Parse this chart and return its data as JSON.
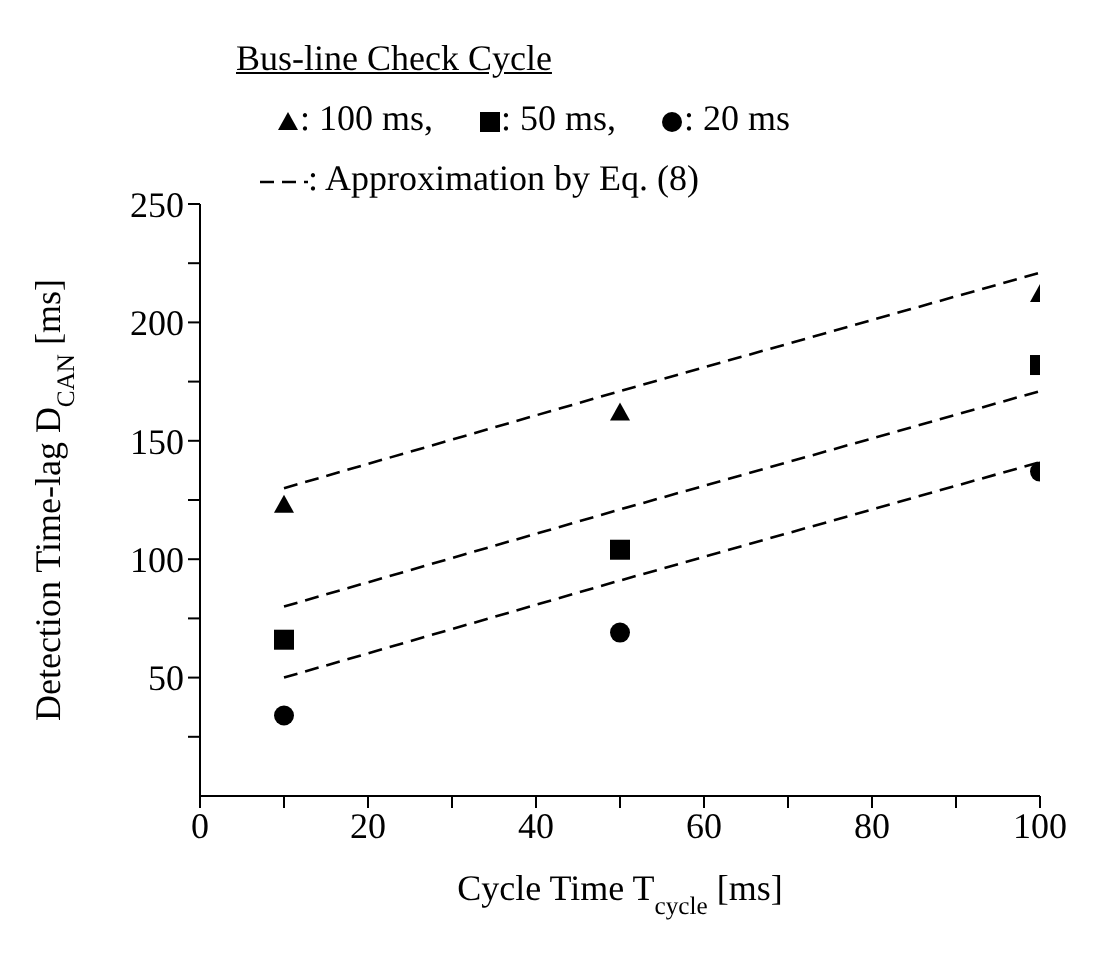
{
  "chart_data": {
    "type": "scatter",
    "xlabel": "Cycle Time T$_{cycle}$ [ms]",
    "ylabel": "Detection Time-lag D$_{CAN}$ [ms]",
    "legend_title": "Bus-line Check Cycle",
    "legend": "top",
    "grid": false,
    "xlim": [
      0,
      100
    ],
    "xticks": [
      0,
      {
        "value": 10,
        "label": null
      },
      20,
      {
        "value": 30,
        "label": null
      },
      40,
      {
        "value": 50,
        "label": null
      },
      60,
      {
        "value": 70,
        "label": null
      },
      80,
      {
        "value": 90,
        "label": null
      },
      100
    ],
    "ylim": [
      0,
      250
    ],
    "yticks": [
      {
        "value": 25,
        "label": null
      },
      50,
      {
        "value": 75,
        "label": null
      },
      100,
      {
        "value": 125,
        "label": null
      },
      150,
      {
        "value": 175,
        "label": null
      },
      200,
      {
        "value": 225,
        "label": null
      },
      250
    ],
    "series": [
      {
        "name": ": 100 ms,",
        "marker": "triangle",
        "color": "#000000",
        "x": [
          10,
          50,
          100
        ],
        "values": [
          123,
          162,
          212
        ]
      },
      {
        "name": ": 50 ms,",
        "marker": "square",
        "color": "#000000",
        "x": [
          10,
          50,
          100
        ],
        "values": [
          66,
          104,
          182
        ]
      },
      {
        "name": ": 20 ms",
        "marker": "circle",
        "color": "#000000",
        "x": [
          10,
          50,
          100
        ],
        "values": [
          34,
          69,
          137
        ]
      },
      {
        "name": ": Approximation by Eq. (8)",
        "type": "line",
        "line_style": "dashed",
        "marker": "none",
        "color": "#000000",
        "x": [
          10,
          50,
          100
        ],
        "values": [
          130,
          171,
          221
        ]
      },
      {
        "type": "line",
        "line_style": "dashed",
        "marker": "none",
        "color": "#000000",
        "x": [
          10,
          50,
          100
        ],
        "values": [
          80,
          121,
          171
        ]
      },
      {
        "type": "line",
        "line_style": "dashed",
        "marker": "none",
        "color": "#000000",
        "x": [
          10,
          50,
          100
        ],
        "values": [
          50,
          91,
          141
        ]
      }
    ]
  }
}
